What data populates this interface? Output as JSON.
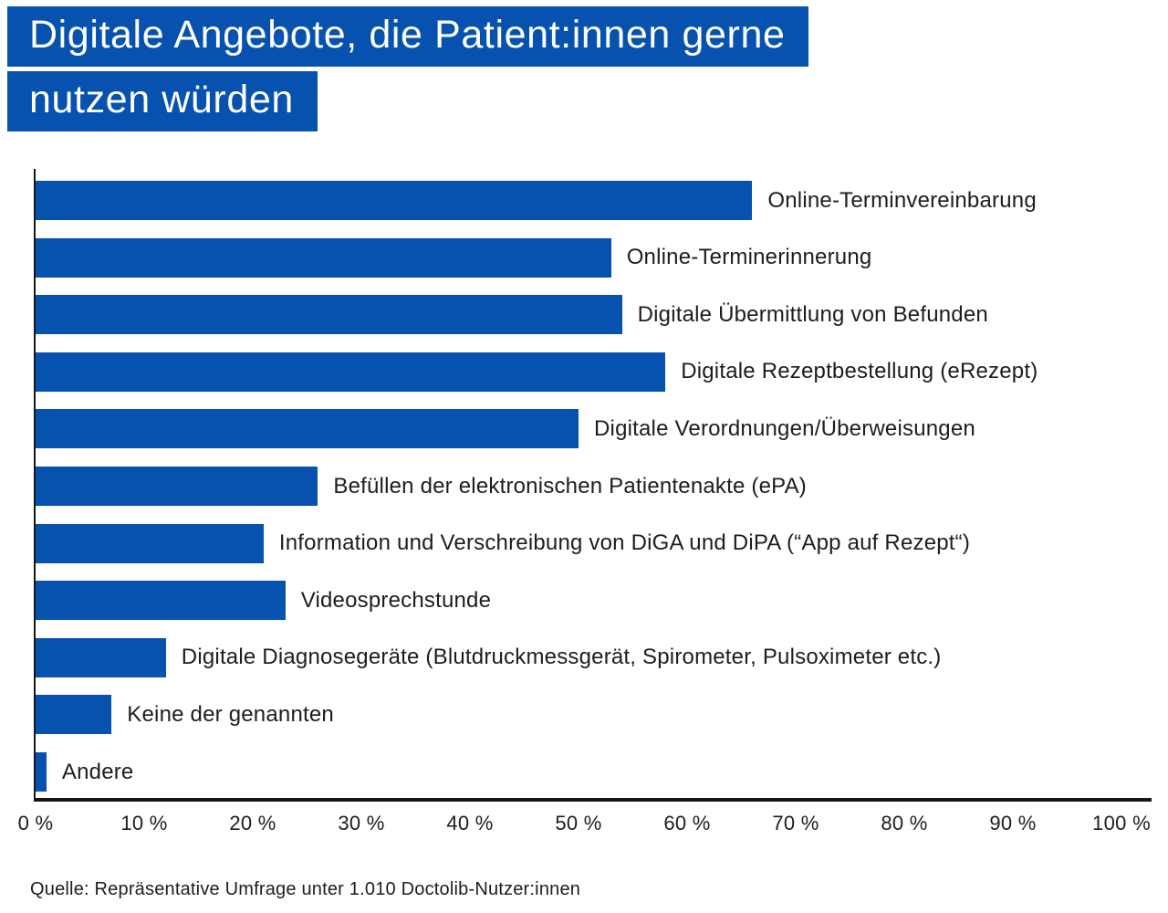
{
  "title": {
    "line1": "Digitale Angebote, die Patient:innen gerne",
    "line2": "nutzen würden"
  },
  "source": "Quelle: Repräsentative Umfrage unter 1.010 Doctolib-Nutzer:innen",
  "colors": {
    "accent_blue": "#0652ae",
    "title_text": "#ffffff",
    "label_text": "#1d1d1b",
    "axis": "#161615",
    "background": "#ffffff"
  },
  "chart_data": {
    "type": "bar",
    "orientation": "horizontal",
    "title": "Digitale Angebote, die Patient:innen gerne nutzen würden",
    "xlabel": "",
    "ylabel": "",
    "xlim": [
      0,
      100
    ],
    "grid": false,
    "legend": "none",
    "unit": "%",
    "bar_color": "#0652ae",
    "categories": [
      "Online-Terminvereinbarung",
      "Online-Terminerinnerung",
      "Digitale Übermittlung von Befunden",
      "Digitale Rezeptbestellung (eRezept)",
      "Digitale Verordnungen/Überweisungen",
      "Befüllen der elektronischen Patientenakte (ePA)",
      "Information und Verschreibung von DiGA und DiPA (“App auf Rezept“)",
      "Videosprechstunde",
      "Digitale Diagnosegeräte (Blutdruckmessgerät, Spirometer, Pulsoximeter etc.)",
      "Keine der genannten",
      "Andere"
    ],
    "values": [
      66,
      53,
      54,
      58,
      50,
      26,
      21,
      23,
      12,
      7,
      1
    ],
    "x_ticks": [
      "0 %",
      "10 %",
      "20 %",
      "30 %",
      "40 %",
      "50 %",
      "60 %",
      "70 %",
      "80 %",
      "90 %",
      "100 %"
    ]
  }
}
